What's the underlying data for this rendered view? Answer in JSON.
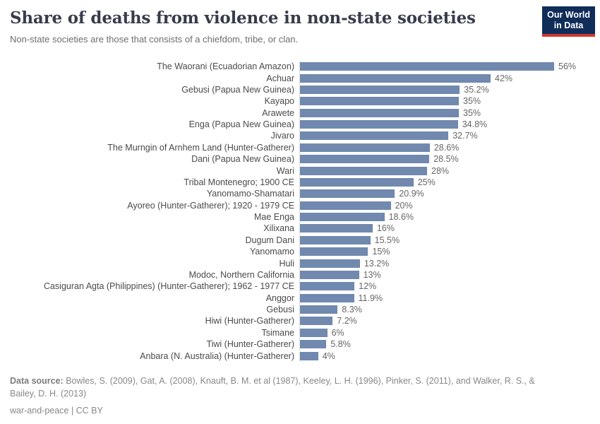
{
  "header": {
    "title": "Share of deaths from violence in non-state societies",
    "subtitle": "Non-state societies are those that consists of a chiefdom, tribe, or clan.",
    "logo_line1": "Our World",
    "logo_line2": "in Data"
  },
  "chart_data": {
    "type": "bar",
    "orientation": "horizontal",
    "title": "Share of deaths from violence in non-state societies",
    "subtitle": "Non-state societies are those that consists of a chiefdom, tribe, or clan.",
    "xlabel": "",
    "ylabel": "",
    "xlim": [
      0,
      56
    ],
    "grid": false,
    "legend": "none",
    "unit": "%",
    "bar_color": "#7189ae",
    "categories": [
      "The Waorani (Ecuadorian Amazon)",
      "Achuar",
      "Gebusi (Papua New Guinea)",
      "Kayapo",
      "Arawete",
      "Enga (Papua New Guinea)",
      "Jivaro",
      "The Murngin of Arnhem Land (Hunter-Gatherer)",
      "Dani (Papua New Guinea)",
      "Wari",
      "Tribal Montenegro; 1900 CE",
      "Yanomamo-Shamatari",
      "Ayoreo (Hunter-Gatherer); 1920 - 1979 CE",
      "Mae Enga",
      "Xilixana",
      "Dugum Dani",
      "Yanomamo",
      "Huli",
      "Modoc, Northern California",
      "Casiguran Agta (Philippines) (Hunter-Gatherer); 1962 - 1977 CE",
      "Anggor",
      "Gebusi",
      "Hiwi (Hunter-Gatherer)",
      "Tsimane",
      "Tiwi (Hunter-Gatherer)",
      "Anbara (N. Australia) (Hunter-Gatherer)"
    ],
    "values": [
      56,
      42,
      35.2,
      35,
      35,
      34.8,
      32.7,
      28.6,
      28.5,
      28,
      25,
      20.9,
      20,
      18.6,
      16,
      15.5,
      15,
      13.2,
      13,
      12,
      11.9,
      8.3,
      7.2,
      6,
      5.8,
      4
    ],
    "value_labels": [
      "56%",
      "42%",
      "35.2%",
      "35%",
      "35%",
      "34.8%",
      "32.7%",
      "28.6%",
      "28.5%",
      "28%",
      "25%",
      "20.9%",
      "20%",
      "18.6%",
      "16%",
      "15.5%",
      "15%",
      "13.2%",
      "13%",
      "12%",
      "11.9%",
      "8.3%",
      "7.2%",
      "6%",
      "5.8%",
      "4%"
    ]
  },
  "footer": {
    "source_label": "Data source:",
    "source_text": " Bowles, S. (2009), Gat, A. (2008), Knauft, B. M. et al (1987), Keeley, L. H. (1996), Pinker, S. (2011), and Walker, R. S., & Bailey, D. H. (2013)",
    "license_line": "war-and-peace | CC BY"
  },
  "colors": {
    "bar": "#7189ae",
    "title": "#373c4b",
    "subtitle": "#6e6e6e",
    "tick_label": "#4a4a4a",
    "value_label": "#666666",
    "axis_line": "#dcdcdc",
    "logo_bg": "#102d59",
    "logo_stripe": "#d0382e"
  }
}
